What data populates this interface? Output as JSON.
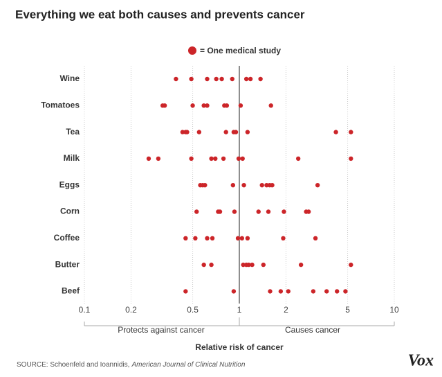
{
  "chart_data": {
    "type": "strip",
    "title": "Everything we eat both causes and prevents cancer",
    "legend_label": "= One medical study",
    "color": "#cc2529",
    "log_x": true,
    "grid": true,
    "xlim": [
      0.1,
      10
    ],
    "xticks": [
      0.1,
      0.2,
      0.5,
      1,
      2,
      5,
      10
    ],
    "reference_line": 1,
    "left_annotation": "Protects against cancer",
    "right_annotation": "Causes cancer",
    "xlabel": "Relative risk of cancer",
    "source": {
      "prefix": "SOURCE: Schoenfeld and Ioannidis,",
      "journal": "American Journal of Clinical Nutrition"
    },
    "logo": "Vox",
    "categories": [
      "Wine",
      "Tomatoes",
      "Tea",
      "Milk",
      "Eggs",
      "Corn",
      "Coffee",
      "Butter",
      "Beef"
    ],
    "values": [
      [
        0.39,
        0.49,
        0.62,
        0.71,
        0.77,
        0.9,
        1.11,
        1.18,
        1.37
      ],
      [
        0.32,
        0.33,
        0.5,
        0.59,
        0.62,
        0.8,
        0.83,
        1.02,
        1.6
      ],
      [
        0.43,
        0.45,
        0.46,
        0.55,
        0.82,
        0.92,
        0.95,
        1.13,
        4.2,
        5.25
      ],
      [
        0.26,
        0.3,
        0.49,
        0.66,
        0.7,
        0.79,
        0.99,
        1.05,
        2.4,
        5.25
      ],
      [
        0.56,
        0.58,
        0.6,
        0.91,
        1.07,
        1.4,
        1.5,
        1.57,
        1.63,
        3.2
      ],
      [
        0.53,
        0.73,
        0.75,
        0.93,
        1.33,
        1.54,
        1.94,
        2.7,
        2.8
      ],
      [
        0.45,
        0.52,
        0.62,
        0.67,
        0.98,
        1.04,
        1.13,
        1.92,
        3.1
      ],
      [
        0.59,
        0.66,
        1.06,
        1.11,
        1.15,
        1.21,
        1.43,
        2.5,
        5.25
      ],
      [
        0.45,
        0.92,
        1.58,
        1.85,
        2.07,
        3.0,
        3.66,
        4.27,
        4.84
      ]
    ]
  }
}
